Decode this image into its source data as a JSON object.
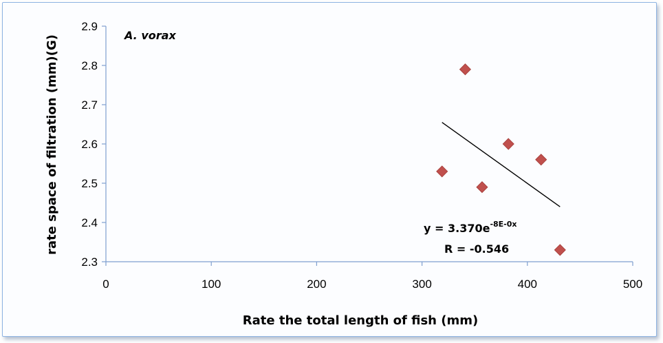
{
  "chart_data": {
    "type": "scatter",
    "annotation_species": "A. vorax",
    "xlabel": "Rate the total length of fish (mm)",
    "ylabel": "rate space of filtration (mm)(G)",
    "xlim": [
      0,
      500
    ],
    "ylim": [
      2.3,
      2.9
    ],
    "x_ticks": [
      "0",
      "100",
      "200",
      "300",
      "400",
      "500"
    ],
    "y_ticks": [
      "2.3",
      "2.4",
      "2.5",
      "2.6",
      "2.7",
      "2.8",
      "2.9"
    ],
    "grid": false,
    "marker": "diamond",
    "marker_color": "#c0504d",
    "series": [
      {
        "points": [
          {
            "x": 319,
            "y": 2.53
          },
          {
            "x": 341,
            "y": 2.79
          },
          {
            "x": 357,
            "y": 2.49
          },
          {
            "x": 382,
            "y": 2.6
          },
          {
            "x": 413,
            "y": 2.56
          },
          {
            "x": 431,
            "y": 2.33
          }
        ]
      }
    ],
    "trendline": {
      "type": "exponential",
      "start": {
        "x": 319,
        "y": 2.655
      },
      "end": {
        "x": 431,
        "y": 2.44
      },
      "color": "#000000"
    },
    "equation": {
      "base": "y = 3.370e",
      "exponent": "-8E-0x"
    },
    "r_text": "R = -0.546"
  }
}
